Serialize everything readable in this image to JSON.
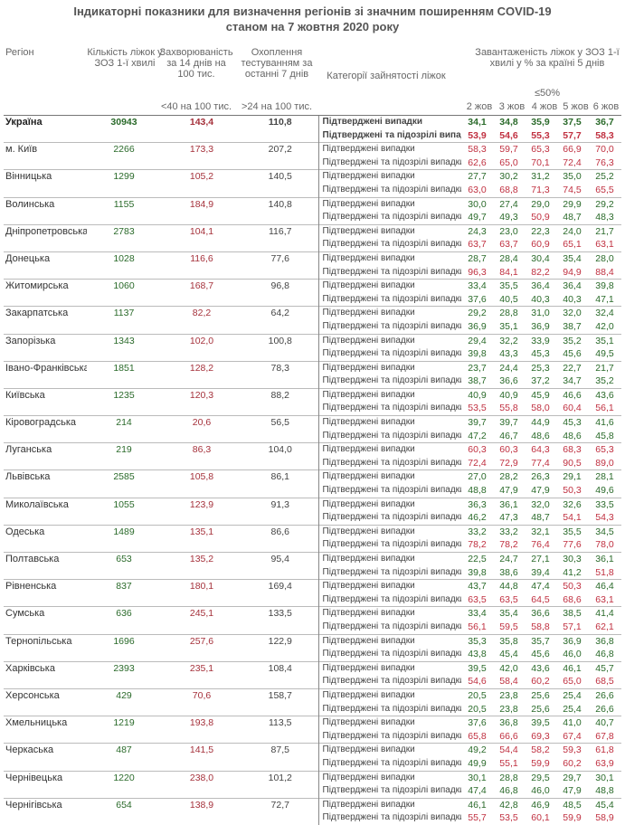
{
  "title": {
    "line1": "Індикаторні показники для визначення регіонів зі значним поширенням COVID-19",
    "line2": "станом на 7 жовтня 2020 року"
  },
  "headers": {
    "region": "Регіон",
    "beds": "Кількість ліжок у ЗОЗ 1-ї хвилі",
    "incidence": "Захворюваність за 14 днів на 100 тис.",
    "testing": "Охоплення тестуванням за останні 7 днів",
    "category": "Категорії зайнятості ліжок",
    "load": "Завантаженість ліжок у ЗОЗ 1-ї хвилі у % за країні 5 днів",
    "incidence_threshold": "<40 на 100 тис.",
    "testing_threshold": ">24 на 100 тис.",
    "load_threshold": "≤50%",
    "days": [
      "2 жов",
      "3 жов",
      "4 жов",
      "5 жов",
      "6 жов"
    ]
  },
  "categories": {
    "confirmed": "Підтверджені випадки",
    "suspected": "Підтверджені та підозрілі випадки"
  },
  "rows": [
    {
      "name": "Україна",
      "beds": "30943",
      "incidence": "143,4",
      "testing": "110,8",
      "confirmed": [
        "34,1",
        "34,8",
        "35,9",
        "37,5",
        "36,7"
      ],
      "suspected": [
        "53,9",
        "54,6",
        "55,3",
        "57,7",
        "58,3"
      ]
    },
    {
      "name": "м. Київ",
      "beds": "2266",
      "incidence": "173,3",
      "testing": "207,2",
      "confirmed": [
        "58,3",
        "59,7",
        "65,3",
        "66,9",
        "70,0"
      ],
      "suspected": [
        "62,6",
        "65,0",
        "70,1",
        "72,4",
        "76,3"
      ]
    },
    {
      "name": "Вінницька",
      "beds": "1299",
      "incidence": "105,2",
      "testing": "140,5",
      "confirmed": [
        "27,7",
        "30,2",
        "31,2",
        "35,0",
        "25,2"
      ],
      "suspected": [
        "63,0",
        "68,8",
        "71,3",
        "74,5",
        "65,5"
      ]
    },
    {
      "name": "Волинська",
      "beds": "1155",
      "incidence": "184,9",
      "testing": "140,8",
      "confirmed": [
        "30,0",
        "27,4",
        "29,0",
        "29,9",
        "29,2"
      ],
      "suspected": [
        "49,7",
        "49,3",
        "50,9",
        "48,7",
        "48,3"
      ]
    },
    {
      "name": "Дніпропетровська",
      "beds": "2783",
      "incidence": "104,1",
      "testing": "116,7",
      "confirmed": [
        "24,3",
        "23,0",
        "22,3",
        "24,0",
        "21,7"
      ],
      "suspected": [
        "63,7",
        "63,7",
        "60,9",
        "65,1",
        "63,1"
      ]
    },
    {
      "name": "Донецька",
      "beds": "1028",
      "incidence": "116,6",
      "testing": "77,6",
      "confirmed": [
        "28,7",
        "28,4",
        "30,4",
        "35,4",
        "28,0"
      ],
      "suspected": [
        "96,3",
        "84,1",
        "82,2",
        "94,9",
        "88,4"
      ]
    },
    {
      "name": "Житомирська",
      "beds": "1060",
      "incidence": "168,7",
      "testing": "96,8",
      "confirmed": [
        "33,4",
        "35,5",
        "36,4",
        "36,4",
        "39,8"
      ],
      "suspected": [
        "37,6",
        "40,5",
        "40,3",
        "40,3",
        "47,1"
      ]
    },
    {
      "name": "Закарпатська",
      "beds": "1137",
      "incidence": "82,2",
      "testing": "64,2",
      "confirmed": [
        "29,2",
        "28,8",
        "31,0",
        "32,0",
        "32,4"
      ],
      "suspected": [
        "36,9",
        "35,1",
        "36,9",
        "38,7",
        "42,0"
      ]
    },
    {
      "name": "Запорізька",
      "beds": "1343",
      "incidence": "102,0",
      "testing": "100,8",
      "confirmed": [
        "29,4",
        "32,2",
        "33,9",
        "35,2",
        "35,1"
      ],
      "suspected": [
        "39,8",
        "43,3",
        "45,3",
        "45,6",
        "49,5"
      ]
    },
    {
      "name": "Івано-Франківська",
      "beds": "1851",
      "incidence": "128,2",
      "testing": "78,3",
      "confirmed": [
        "23,7",
        "24,4",
        "25,3",
        "22,7",
        "21,7"
      ],
      "suspected": [
        "38,7",
        "36,6",
        "37,2",
        "34,7",
        "35,2"
      ]
    },
    {
      "name": "Київська",
      "beds": "1235",
      "incidence": "120,3",
      "testing": "88,2",
      "confirmed": [
        "40,9",
        "40,9",
        "45,9",
        "46,6",
        "43,6"
      ],
      "suspected": [
        "53,5",
        "55,8",
        "58,0",
        "60,4",
        "56,1"
      ]
    },
    {
      "name": "Кіровоградська",
      "beds": "214",
      "incidence": "20,6",
      "testing": "56,5",
      "confirmed": [
        "39,7",
        "39,7",
        "44,9",
        "45,3",
        "41,6"
      ],
      "suspected": [
        "47,2",
        "46,7",
        "48,6",
        "48,6",
        "45,8"
      ]
    },
    {
      "name": "Луганська",
      "beds": "219",
      "incidence": "86,3",
      "testing": "104,0",
      "confirmed": [
        "60,3",
        "60,3",
        "64,3",
        "68,3",
        "65,3"
      ],
      "suspected": [
        "72,4",
        "72,9",
        "77,4",
        "90,5",
        "89,0"
      ]
    },
    {
      "name": "Львівська",
      "beds": "2585",
      "incidence": "105,8",
      "testing": "86,1",
      "confirmed": [
        "27,0",
        "28,2",
        "26,3",
        "29,1",
        "28,1"
      ],
      "suspected": [
        "48,8",
        "47,9",
        "47,9",
        "50,3",
        "49,6"
      ]
    },
    {
      "name": "Миколаївська",
      "beds": "1055",
      "incidence": "123,9",
      "testing": "91,3",
      "confirmed": [
        "36,3",
        "36,1",
        "32,0",
        "32,6",
        "33,5"
      ],
      "suspected": [
        "46,2",
        "47,3",
        "48,7",
        "54,1",
        "54,3"
      ]
    },
    {
      "name": "Одеська",
      "beds": "1489",
      "incidence": "135,1",
      "testing": "86,6",
      "confirmed": [
        "33,2",
        "33,2",
        "32,1",
        "35,5",
        "34,5"
      ],
      "suspected": [
        "78,2",
        "78,2",
        "76,4",
        "77,6",
        "78,0"
      ]
    },
    {
      "name": "Полтавська",
      "beds": "653",
      "incidence": "135,2",
      "testing": "95,4",
      "confirmed": [
        "22,5",
        "24,7",
        "27,1",
        "30,3",
        "36,1"
      ],
      "suspected": [
        "39,8",
        "38,6",
        "39,4",
        "41,2",
        "51,8"
      ]
    },
    {
      "name": "Рівненська",
      "beds": "837",
      "incidence": "180,1",
      "testing": "169,4",
      "confirmed": [
        "43,7",
        "44,8",
        "47,4",
        "50,3",
        "46,4"
      ],
      "suspected": [
        "63,5",
        "63,5",
        "64,5",
        "68,6",
        "63,1"
      ]
    },
    {
      "name": "Сумська",
      "beds": "636",
      "incidence": "245,1",
      "testing": "133,5",
      "confirmed": [
        "33,4",
        "35,4",
        "36,6",
        "38,5",
        "41,4"
      ],
      "suspected": [
        "56,1",
        "59,5",
        "58,8",
        "57,1",
        "62,1"
      ]
    },
    {
      "name": "Тернопільська",
      "beds": "1696",
      "incidence": "257,6",
      "testing": "122,9",
      "confirmed": [
        "35,3",
        "35,8",
        "35,7",
        "36,9",
        "36,8"
      ],
      "suspected": [
        "43,8",
        "45,4",
        "45,6",
        "46,0",
        "46,8"
      ]
    },
    {
      "name": "Харківська",
      "beds": "2393",
      "incidence": "235,1",
      "testing": "108,4",
      "confirmed": [
        "39,5",
        "42,0",
        "43,6",
        "46,1",
        "45,7"
      ],
      "suspected": [
        "54,6",
        "58,4",
        "60,2",
        "65,0",
        "68,5"
      ]
    },
    {
      "name": "Херсонська",
      "beds": "429",
      "incidence": "70,6",
      "testing": "158,7",
      "confirmed": [
        "20,5",
        "23,8",
        "25,6",
        "25,4",
        "26,6"
      ],
      "suspected": [
        "20,5",
        "23,8",
        "25,6",
        "25,4",
        "26,6"
      ]
    },
    {
      "name": "Хмельницька",
      "beds": "1219",
      "incidence": "193,8",
      "testing": "113,5",
      "confirmed": [
        "37,6",
        "36,8",
        "39,5",
        "41,0",
        "40,7"
      ],
      "suspected": [
        "65,8",
        "66,6",
        "69,3",
        "67,4",
        "67,8"
      ]
    },
    {
      "name": "Черкаська",
      "beds": "487",
      "incidence": "141,5",
      "testing": "87,5",
      "confirmed": [
        "49,2",
        "54,4",
        "58,2",
        "59,3",
        "61,8"
      ],
      "suspected": [
        "49,9",
        "55,1",
        "59,9",
        "60,2",
        "63,9"
      ]
    },
    {
      "name": "Чернівецька",
      "beds": "1220",
      "incidence": "238,0",
      "testing": "101,2",
      "confirmed": [
        "30,1",
        "28,8",
        "29,5",
        "29,7",
        "30,1"
      ],
      "suspected": [
        "47,4",
        "46,8",
        "46,0",
        "47,9",
        "48,8"
      ]
    },
    {
      "name": "Чернігівська",
      "beds": "654",
      "incidence": "138,9",
      "testing": "72,7",
      "confirmed": [
        "46,1",
        "42,8",
        "46,9",
        "48,5",
        "45,4"
      ],
      "suspected": [
        "55,7",
        "53,5",
        "60,1",
        "59,9",
        "58,9"
      ]
    }
  ]
}
